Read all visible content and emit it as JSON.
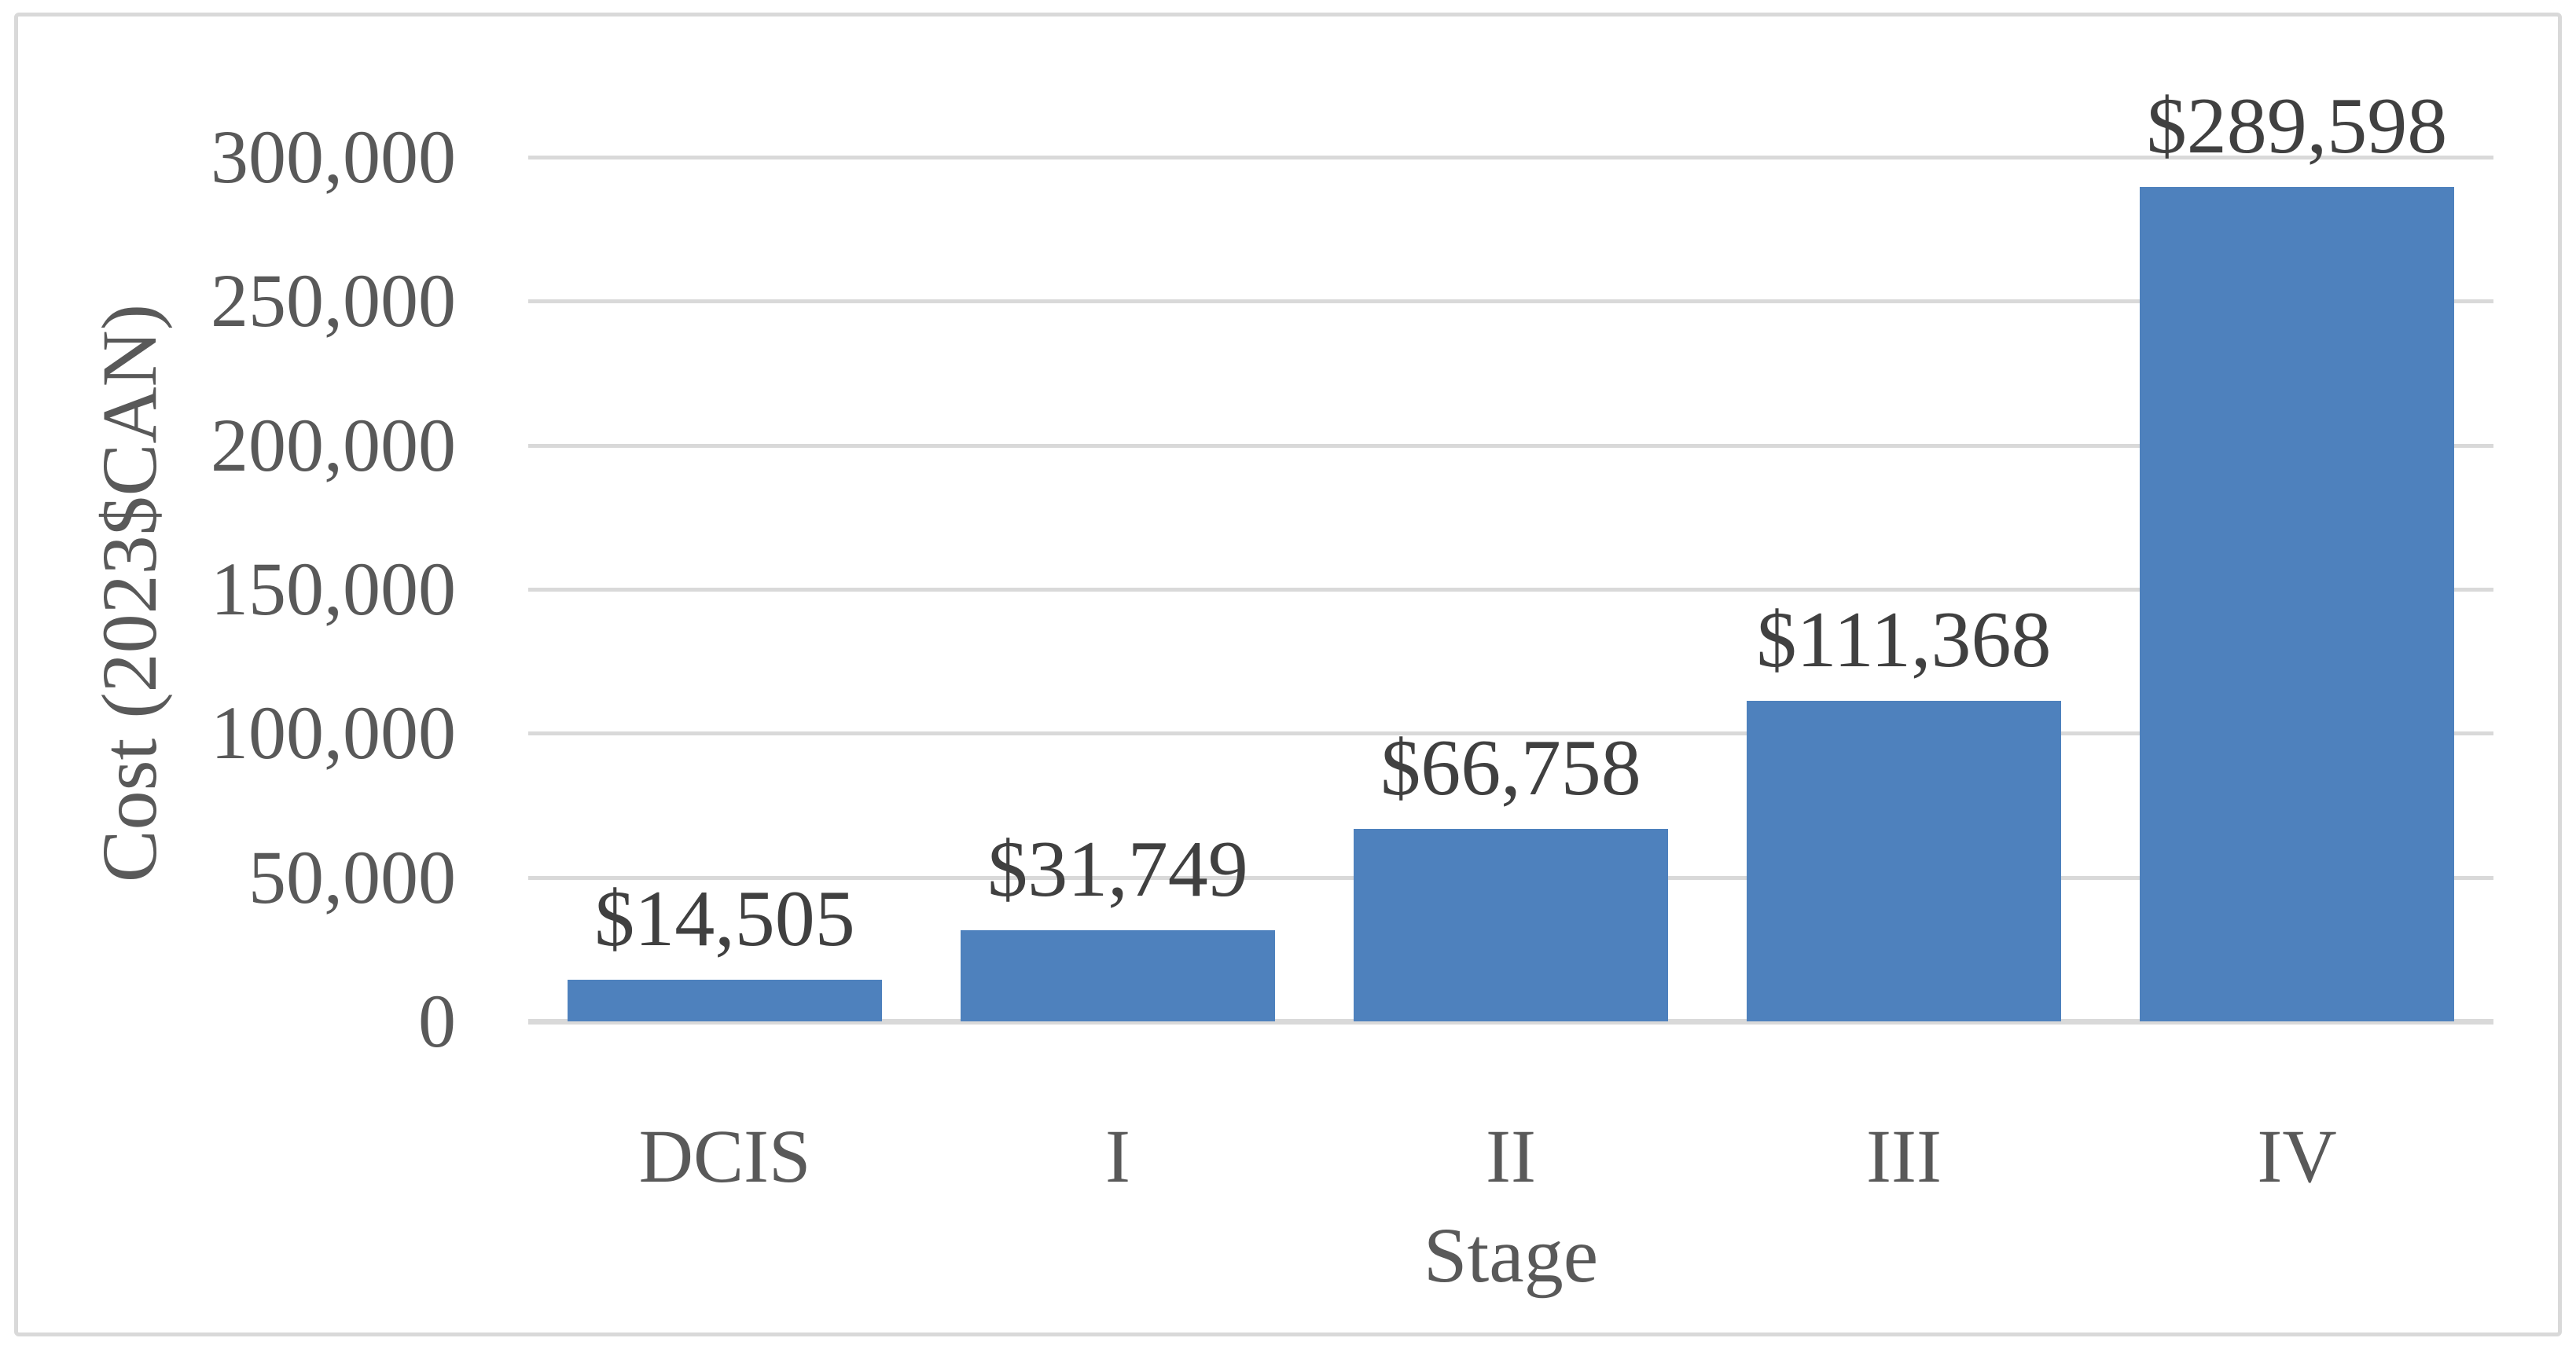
{
  "chart_data": {
    "type": "bar",
    "categories": [
      "DCIS",
      "I",
      "II",
      "III",
      "IV"
    ],
    "values": [
      14505,
      31749,
      66758,
      111368,
      289598
    ],
    "data_labels": [
      "$14,505",
      "$31,749",
      "$66,758",
      "$111,368",
      "$289,598"
    ],
    "title": "",
    "xlabel": "Stage",
    "ylabel": "Cost (2023$CAN)",
    "ylim": [
      0,
      300000
    ],
    "ytick_step": 50000,
    "ytick_labels": [
      "0",
      "50,000",
      "100,000",
      "150,000",
      "200,000",
      "250,000",
      "300,000"
    ],
    "grid": true,
    "legend": false,
    "colors": {
      "bar_fill": "#4E81BD",
      "gridline": "#D9D9D9",
      "axis_line": "#D9D9D9",
      "chart_border": "#D9D9D9",
      "axis_text": "#595959",
      "data_label_text": "#404040"
    }
  }
}
